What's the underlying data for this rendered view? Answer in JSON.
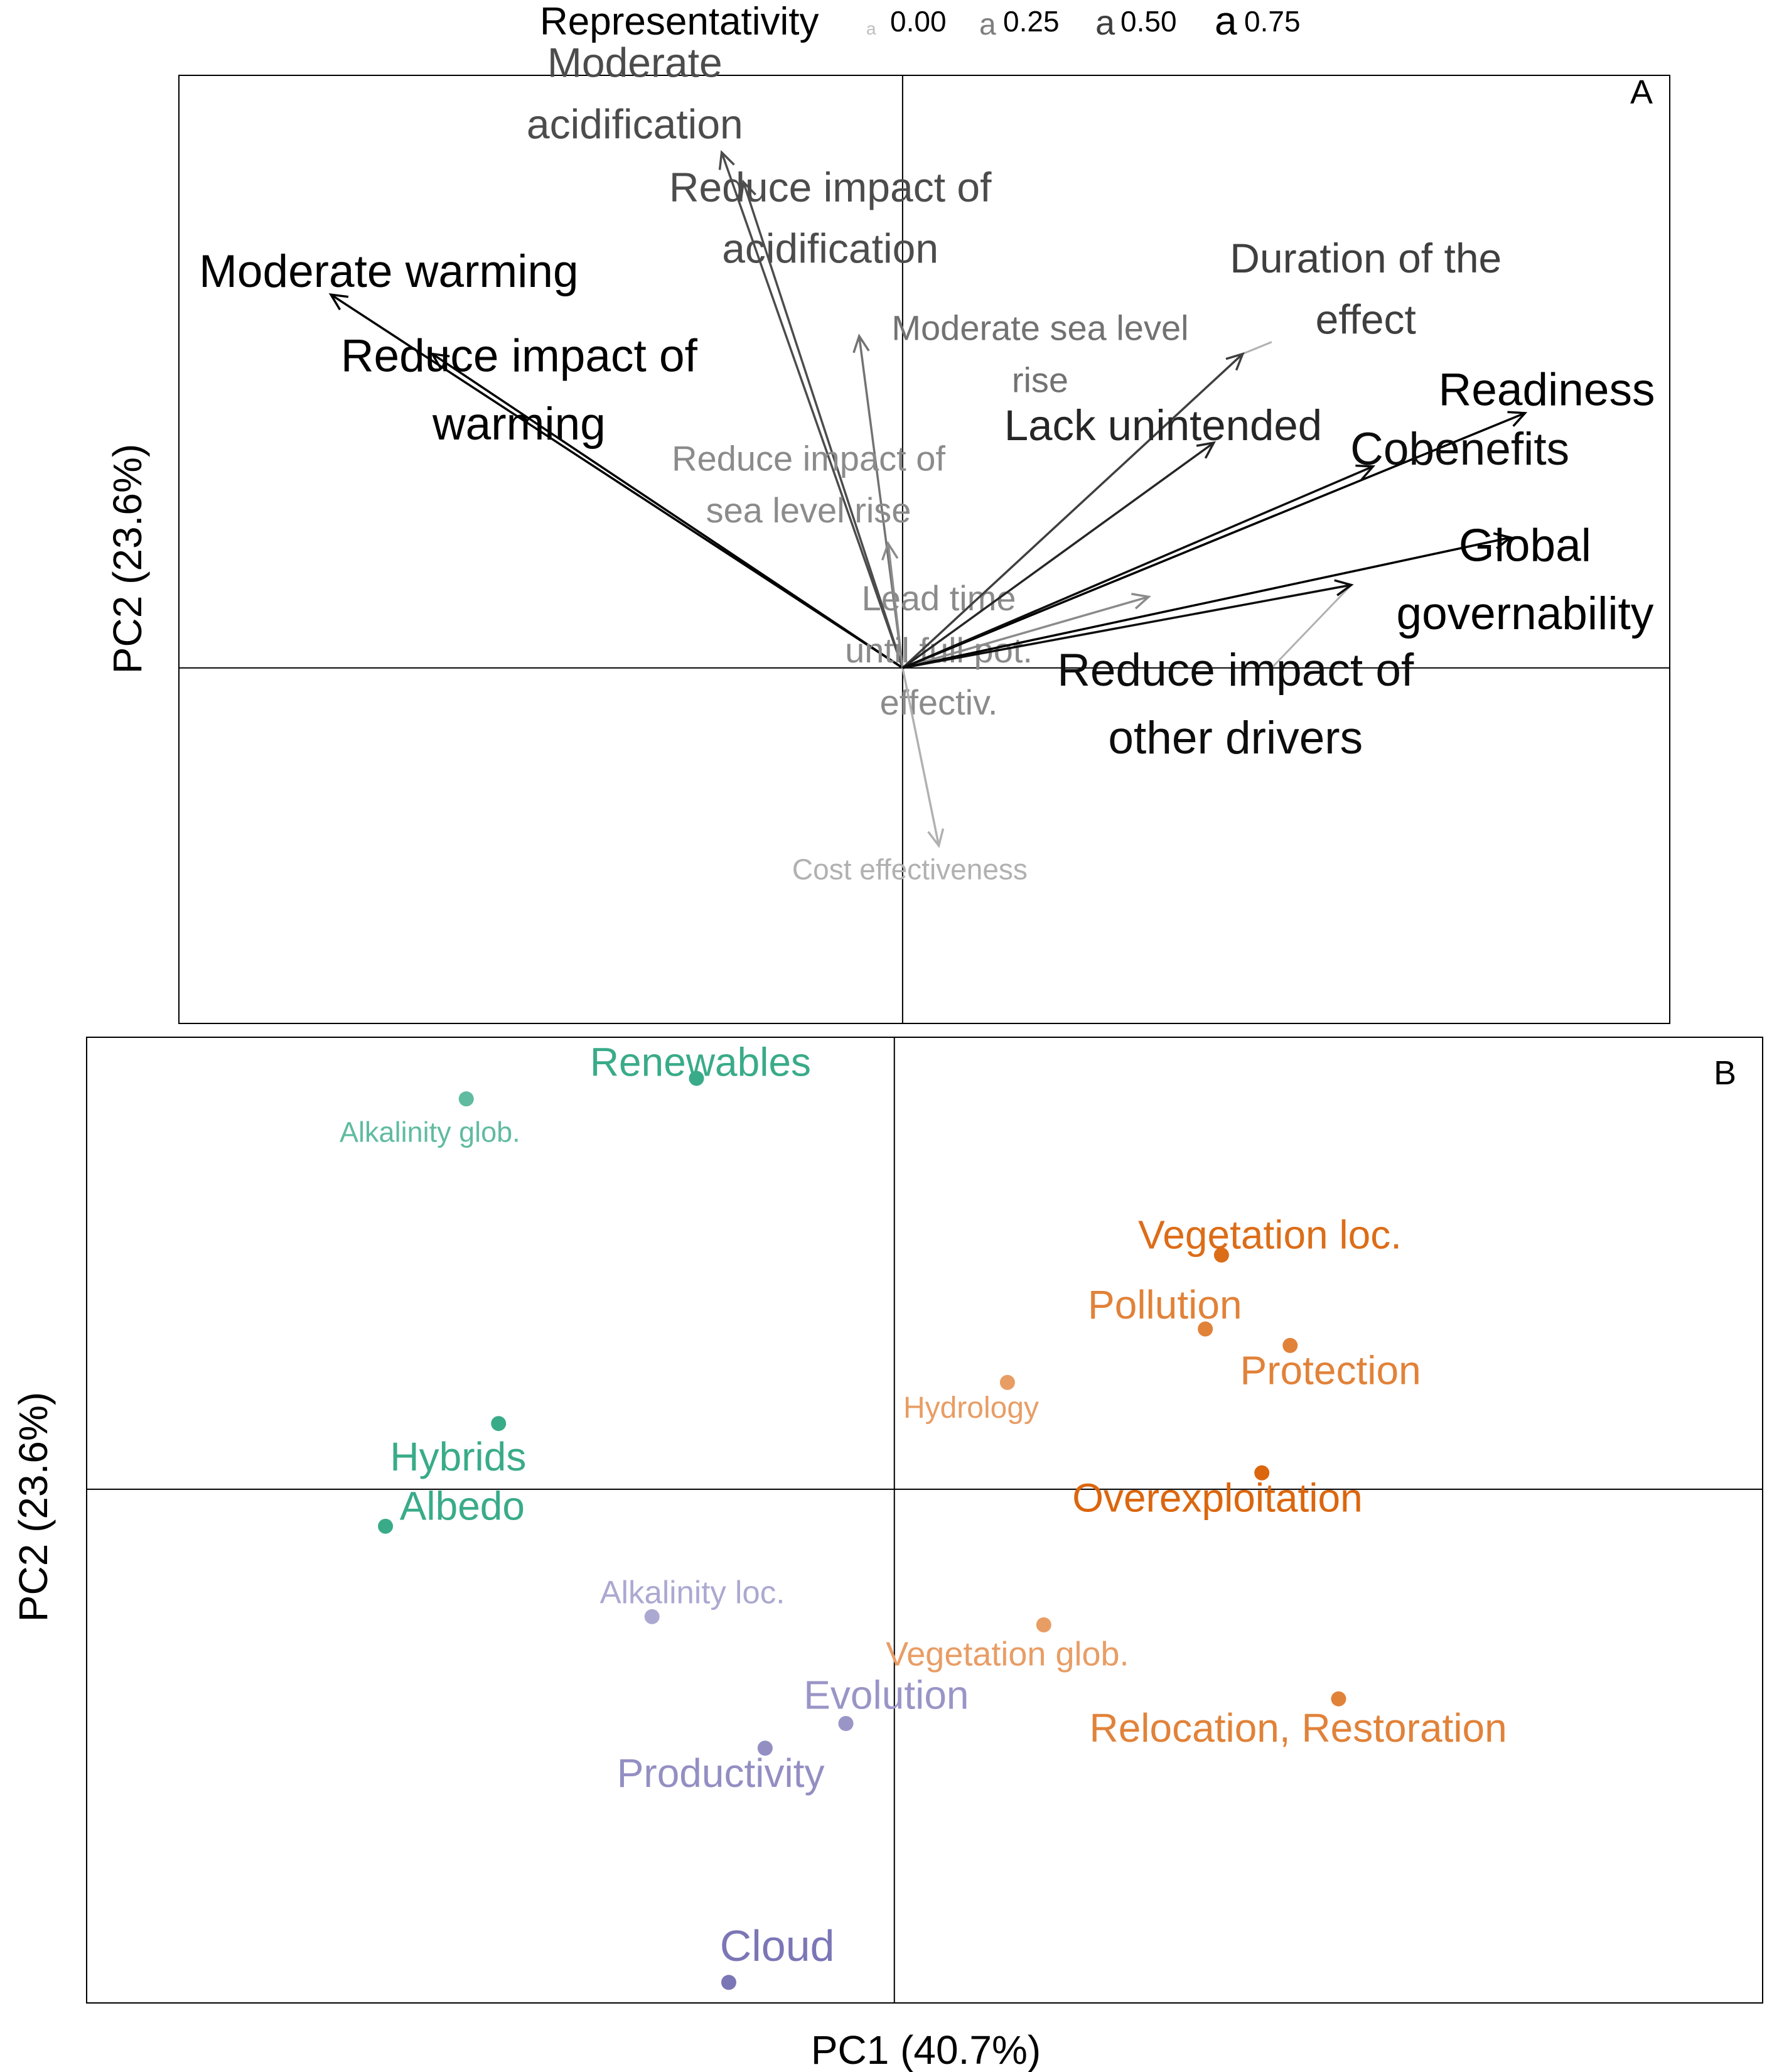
{
  "chart_data": [
    {
      "type": "biplot-loadings",
      "panel_label": "A",
      "xlim": [
        -1.0,
        1.06
      ],
      "ylim": [
        -0.6,
        1.0
      ],
      "legend": {
        "title": "Representativity",
        "placement": "top-center",
        "levels": [
          {
            "value": 0.0,
            "label": "0.00",
            "glyph": "a"
          },
          {
            "value": 0.25,
            "label": "0.25",
            "glyph": "a"
          },
          {
            "value": 0.5,
            "label": "0.50",
            "glyph": "a"
          },
          {
            "value": 0.75,
            "label": "0.75",
            "glyph": "a"
          }
        ]
      },
      "arrows": [
        {
          "label": "Moderate acidification",
          "lines": [
            "Moderate",
            "acidification"
          ],
          "x": -0.25,
          "y": 0.87,
          "rep": 0.55,
          "lx": -0.37,
          "ly": 0.97,
          "size": 1.0
        },
        {
          "label": "Reduce impact of acidification",
          "lines": [
            "Reduce impact of",
            "acidification"
          ],
          "x": -0.22,
          "y": 0.82,
          "rep": 0.55,
          "lx": -0.1,
          "ly": 0.76,
          "size": 1.0
        },
        {
          "label": "Moderate warming",
          "lines": [
            "Moderate warming"
          ],
          "x": -0.79,
          "y": 0.63,
          "rep": 0.85,
          "lx": -0.71,
          "ly": 0.67,
          "size": 1.1
        },
        {
          "label": "Reduce impact of warming",
          "lines": [
            "Reduce impact of",
            "warming"
          ],
          "x": -0.65,
          "y": 0.53,
          "rep": 0.85,
          "lx": -0.53,
          "ly": 0.47,
          "size": 1.1
        },
        {
          "label": "Moderate sea level rise",
          "lines": [
            "Moderate sea level",
            "rise"
          ],
          "x": -0.06,
          "y": 0.56,
          "rep": 0.4,
          "lx": 0.19,
          "ly": 0.53,
          "size": 0.85
        },
        {
          "label": "Reduce impact of sea level rise",
          "lines": [
            "Reduce impact of",
            "sea level rise"
          ],
          "x": -0.02,
          "y": 0.21,
          "rep": 0.3,
          "lx": -0.13,
          "ly": 0.31,
          "size": 0.85
        },
        {
          "label": "Lead time until full pot. effectiv.",
          "lines": [
            "Lead time",
            "until full pot.",
            "effectiv."
          ],
          "x": 0.34,
          "y": 0.12,
          "rep": 0.3,
          "lx": 0.05,
          "ly": 0.03,
          "size": 0.85
        },
        {
          "label": "Cost effectiveness",
          "lines": [
            "Cost effectiveness"
          ],
          "x": 0.05,
          "y": -0.3,
          "rep": 0.15,
          "lx": 0.01,
          "ly": -0.34,
          "size": 0.7
        },
        {
          "label": "Duration of the effect",
          "lines": [
            "Duration of the",
            "effect"
          ],
          "x": 0.47,
          "y": 0.53,
          "rep": 0.6,
          "lx": 0.64,
          "ly": 0.64,
          "size": 1.0
        },
        {
          "label": "Lack unintended",
          "lines": [
            "Lack unintended"
          ],
          "x": 0.43,
          "y": 0.38,
          "rep": 0.7,
          "lx": 0.36,
          "ly": 0.41,
          "size": 1.05
        },
        {
          "label": "Readiness",
          "lines": [
            "Readiness"
          ],
          "x": 0.86,
          "y": 0.43,
          "rep": 0.85,
          "lx": 0.89,
          "ly": 0.47,
          "size": 1.1
        },
        {
          "label": "Cobenefits",
          "lines": [
            "Cobenefits"
          ],
          "x": 0.65,
          "y": 0.34,
          "rep": 0.8,
          "lx": 0.77,
          "ly": 0.37,
          "size": 1.1
        },
        {
          "label": "Global governability",
          "lines": [
            "Global",
            "governability"
          ],
          "x": 0.84,
          "y": 0.22,
          "rep": 0.85,
          "lx": 0.86,
          "ly": 0.15,
          "size": 1.1
        },
        {
          "label": "Reduce impact of other drivers",
          "lines": [
            "Reduce impact of",
            "other drivers"
          ],
          "x": 0.62,
          "y": 0.14,
          "rep": 0.8,
          "lx": 0.46,
          "ly": -0.06,
          "size": 1.1
        }
      ],
      "extra_segments": [
        {
          "x1": 0.47,
          "y1": 0.53,
          "x2": 0.51,
          "y2": 0.55,
          "rep": 0.15
        },
        {
          "x1": 0.51,
          "y1": -0.0,
          "x2": 0.62,
          "y2": 0.14,
          "rep": 0.15
        }
      ]
    },
    {
      "type": "scatter",
      "panel_label": "B",
      "xlabel": "PC1 (40.7%)",
      "ylabel": "PC2 (23.6%)",
      "xlim": [
        -2.0,
        2.15
      ],
      "ylim": [
        -1.25,
        1.1
      ],
      "points": [
        {
          "label": "Renewables",
          "x": -0.49,
          "y": 1.0,
          "color": "#1b9e77",
          "rep": 0.6,
          "lx": -0.48,
          "ly": 1.04,
          "size": 1.0
        },
        {
          "label": "Alkalinity glob.",
          "x": -1.06,
          "y": 0.95,
          "color": "#1b9e77",
          "rep": 0.4,
          "lx": -1.15,
          "ly": 0.87,
          "size": 0.7
        },
        {
          "label": "Hybrids",
          "x": -0.98,
          "y": 0.16,
          "color": "#1b9e77",
          "rep": 0.6,
          "lx": -1.08,
          "ly": 0.08,
          "size": 1.0
        },
        {
          "label": "Albedo",
          "x": -1.26,
          "y": -0.09,
          "color": "#1b9e77",
          "rep": 0.6,
          "lx": -1.07,
          "ly": -0.04,
          "size": 1.0
        },
        {
          "label": "Vegetation loc.",
          "x": 0.81,
          "y": 0.57,
          "color": "#d95f02",
          "rep": 0.65,
          "lx": 0.93,
          "ly": 0.62,
          "size": 1.0
        },
        {
          "label": "Pollution",
          "x": 0.77,
          "y": 0.39,
          "color": "#d95f02",
          "rep": 0.5,
          "lx": 0.67,
          "ly": 0.45,
          "size": 1.0
        },
        {
          "label": "Protection",
          "x": 0.98,
          "y": 0.35,
          "color": "#d95f02",
          "rep": 0.5,
          "lx": 1.08,
          "ly": 0.29,
          "size": 1.0
        },
        {
          "label": "Hydrology",
          "x": 0.28,
          "y": 0.26,
          "color": "#d95f02",
          "rep": 0.3,
          "lx": 0.19,
          "ly": 0.2,
          "size": 0.75
        },
        {
          "label": "Overexploitation",
          "x": 0.91,
          "y": 0.04,
          "color": "#d95f02",
          "rep": 0.7,
          "lx": 0.8,
          "ly": -0.02,
          "size": 1.0
        },
        {
          "label": "Alkalinity loc.",
          "x": -0.6,
          "y": -0.31,
          "color": "#7570b3",
          "rep": 0.3,
          "lx": -0.5,
          "ly": -0.25,
          "size": 0.8
        },
        {
          "label": "Vegetation glob.",
          "x": 0.37,
          "y": -0.33,
          "color": "#d95f02",
          "rep": 0.3,
          "lx": 0.28,
          "ly": -0.4,
          "size": 0.85
        },
        {
          "label": "Relocation, Restoration",
          "x": 1.1,
          "y": -0.51,
          "color": "#d95f02",
          "rep": 0.5,
          "lx": 1.0,
          "ly": -0.58,
          "size": 1.0
        },
        {
          "label": "Evolution",
          "x": -0.12,
          "y": -0.57,
          "color": "#7570b3",
          "rep": 0.45,
          "lx": -0.02,
          "ly": -0.5,
          "size": 1.0
        },
        {
          "label": "Productivity",
          "x": -0.32,
          "y": -0.63,
          "color": "#7570b3",
          "rep": 0.5,
          "lx": -0.43,
          "ly": -0.69,
          "size": 1.0
        },
        {
          "label": "Cloud",
          "x": -0.41,
          "y": -1.2,
          "color": "#7570b3",
          "rep": 0.7,
          "lx": -0.29,
          "ly": -1.11,
          "size": 1.1
        }
      ]
    }
  ]
}
